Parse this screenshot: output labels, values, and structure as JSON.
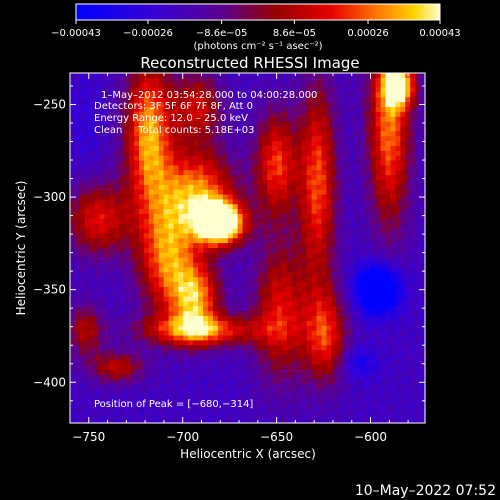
{
  "chart_data": {
    "type": "heatmap",
    "title": "Reconstructed RHESSI Image",
    "xlabel": "Heliocentric X (arcsec)",
    "ylabel": "Heliocentric Y (arcsec)",
    "xlim": [
      -760,
      -571
    ],
    "ylim": [
      -422,
      -233
    ],
    "xticks": [
      -750,
      -700,
      -650,
      -600
    ],
    "xtick_labels": [
      "−750",
      "−700",
      "−650",
      "−600"
    ],
    "yticks": [
      -250,
      -300,
      -350,
      -400
    ],
    "ytick_labels": [
      "−250",
      "−300",
      "−350",
      "−400"
    ],
    "colorbar": {
      "min": -0.00043,
      "max": 0.00043,
      "ticks": [
        -0.00043,
        -0.00026,
        -8.6e-05,
        8.6e-05,
        0.00026,
        0.00043
      ],
      "tick_labels": [
        "−0.00043",
        "−0.00026",
        "−8.6e−05",
        "8.6e−05",
        "0.00026",
        "0.00043"
      ],
      "units": "(photons cm⁻² s⁻¹ asec⁻²)",
      "colormap": "RHESSI blue-purple-red-yellow-white"
    },
    "annotations": {
      "time": "1–May–2012 03:54:28.000 to 04:00:28.000",
      "detectors": "Detectors: 3F 5F 6F 7F 8F, Att 0",
      "energy": "Energy Range: 12.0 – 25.0 keV",
      "clean": "Clean     Total counts: 5.18E+03",
      "peak": "Position of Peak = [−680,−314]"
    },
    "peak": {
      "x": -680,
      "y": -314,
      "value": 0.00043
    },
    "sources": [
      {
        "x": -680,
        "y": -314,
        "sx": 9,
        "sy": 8,
        "amp": 1.0
      },
      {
        "x": -692,
        "y": -297,
        "sx": 14,
        "sy": 16,
        "amp": 0.55
      },
      {
        "x": -708,
        "y": -332,
        "sx": 11,
        "sy": 22,
        "amp": 0.55
      },
      {
        "x": -693,
        "y": -355,
        "sx": 9,
        "sy": 14,
        "amp": 0.55
      },
      {
        "x": -690,
        "y": -372,
        "sx": 22,
        "sy": 6,
        "amp": 0.5
      },
      {
        "x": -718,
        "y": -266,
        "sx": 9,
        "sy": 28,
        "amp": 0.62
      },
      {
        "x": -692,
        "y": -251,
        "sx": 9,
        "sy": 13,
        "amp": 0.38
      },
      {
        "x": -650,
        "y": -282,
        "sx": 8,
        "sy": 20,
        "amp": 0.48
      },
      {
        "x": -628,
        "y": -292,
        "sx": 7,
        "sy": 38,
        "amp": 0.5
      },
      {
        "x": -590,
        "y": -262,
        "sx": 8,
        "sy": 38,
        "amp": 0.55
      },
      {
        "x": -585,
        "y": -240,
        "sx": 6,
        "sy": 8,
        "amp": 0.62
      },
      {
        "x": -745,
        "y": -312,
        "sx": 12,
        "sy": 14,
        "amp": 0.42
      },
      {
        "x": -752,
        "y": -372,
        "sx": 7,
        "sy": 10,
        "amp": 0.32
      },
      {
        "x": -648,
        "y": -362,
        "sx": 10,
        "sy": 26,
        "amp": 0.42
      },
      {
        "x": -624,
        "y": -375,
        "sx": 8,
        "sy": 18,
        "amp": 0.45
      },
      {
        "x": -735,
        "y": -392,
        "sx": 10,
        "sy": 6,
        "amp": 0.35
      },
      {
        "x": -596,
        "y": -350,
        "sx": 8,
        "sy": 9,
        "amp": -0.6
      },
      {
        "x": -606,
        "y": -390,
        "sx": 7,
        "sy": 6,
        "amp": -0.18
      },
      {
        "x": -752,
        "y": -260,
        "sx": 7,
        "sy": 20,
        "amp": -0.06
      }
    ]
  },
  "timestamp": "10–May–2022 07:52"
}
